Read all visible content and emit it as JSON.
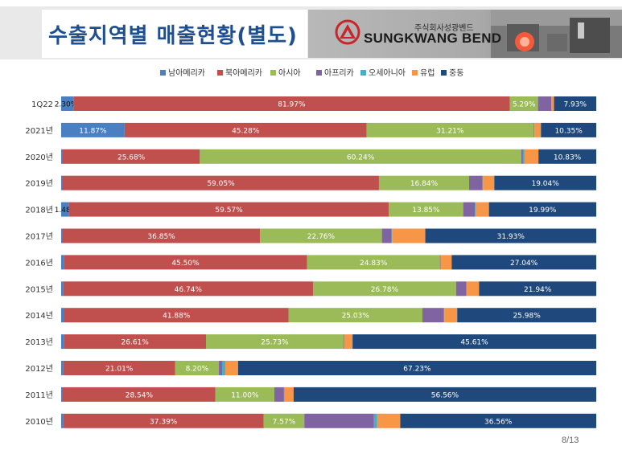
{
  "header": {
    "title": "수출지역별 매출현황(별도)",
    "logo_subtitle": "주식회사성광벤드",
    "logo_text": "SUNGKWANG BEND"
  },
  "page_number": "8/13",
  "colors": {
    "남아메리카": "#4a7fc1",
    "북아메리카": "#c0504d",
    "아시아": "#9bbb59",
    "아프리카": "#8064a2",
    "오세아니아": "#4bacc6",
    "유럽": "#f79646",
    "중동": "#1f497d"
  },
  "chart_data": {
    "type": "bar",
    "orientation": "horizontal",
    "stacked": "100%",
    "legend_position": "top",
    "categories": [
      "1Q22",
      "2021년",
      "2020년",
      "2019년",
      "2018년",
      "2017년",
      "2016년",
      "2015년",
      "2014년",
      "2013년",
      "2012년",
      "2011년",
      "2010년"
    ],
    "series": [
      {
        "name": "남아메리카",
        "values": [
          2.3,
          11.87,
          0.3,
          0.3,
          1.48,
          0.3,
          0.5,
          0.4,
          0.6,
          0.5,
          0.4,
          0.3,
          0.4
        ],
        "labels": [
          "2.30%",
          "11.87%",
          "",
          "",
          "1.48%",
          "",
          "",
          "",
          "",
          "",
          "",
          "",
          ""
        ]
      },
      {
        "name": "북아메리카",
        "values": [
          81.97,
          45.28,
          25.68,
          59.05,
          59.57,
          36.85,
          45.5,
          46.74,
          41.88,
          26.61,
          21.01,
          28.54,
          37.39
        ],
        "labels": [
          "81.97%",
          "45.28%",
          "25.68%",
          "59.05%",
          "59.57%",
          "36.85%",
          "45.50%",
          "46.74%",
          "41.88%",
          "26.61%",
          "21.01%",
          "28.54%",
          "37.39%"
        ]
      },
      {
        "name": "아시아",
        "values": [
          5.29,
          31.21,
          60.24,
          16.84,
          13.85,
          22.76,
          24.83,
          26.78,
          25.03,
          25.73,
          8.2,
          11.0,
          7.57
        ],
        "labels": [
          "5.29%",
          "31.21%",
          "60.24%",
          "16.84%",
          "13.85%",
          "22.76%",
          "24.83%",
          "26.78%",
          "25.03%",
          "25.73%",
          "8.20%",
          "11.00%",
          "7.57%"
        ]
      },
      {
        "name": "아프리카",
        "values": [
          2.5,
          0.1,
          0.3,
          2.5,
          2.2,
          1.8,
          0.1,
          1.9,
          4.0,
          0.1,
          0.6,
          1.8,
          13.0
        ],
        "labels": [
          "",
          "",
          "",
          "",
          "",
          "",
          "",
          "",
          "",
          "",
          "",
          "",
          ""
        ]
      },
      {
        "name": "오세아니아",
        "values": [
          0.01,
          0.1,
          0.3,
          0.1,
          0.1,
          0.1,
          0.1,
          0.1,
          0.1,
          0.1,
          0.6,
          0.1,
          0.6
        ],
        "labels": [
          "",
          "",
          "",
          "",
          "",
          "",
          "",
          "",
          "",
          "",
          "",
          "",
          ""
        ]
      },
      {
        "name": "유럽",
        "values": [
          0.5,
          1.2,
          2.6,
          2.1,
          2.5,
          6.2,
          2.0,
          2.3,
          2.4,
          1.5,
          2.4,
          1.7,
          4.3
        ],
        "labels": [
          "",
          "",
          "",
          "",
          "",
          "",
          "",
          "",
          "",
          "",
          "",
          "",
          ""
        ]
      },
      {
        "name": "중동",
        "values": [
          7.93,
          10.35,
          10.83,
          19.04,
          19.99,
          31.93,
          27.04,
          21.94,
          25.98,
          45.61,
          67.23,
          56.56,
          36.56
        ],
        "labels": [
          "7.93%",
          "10.35%",
          "10.83%",
          "19.04%",
          "19.99%",
          "31.93%",
          "27.04%",
          "21.94%",
          "25.98%",
          "45.61%",
          "67.23%",
          "56.56%",
          "36.56%"
        ]
      }
    ]
  }
}
